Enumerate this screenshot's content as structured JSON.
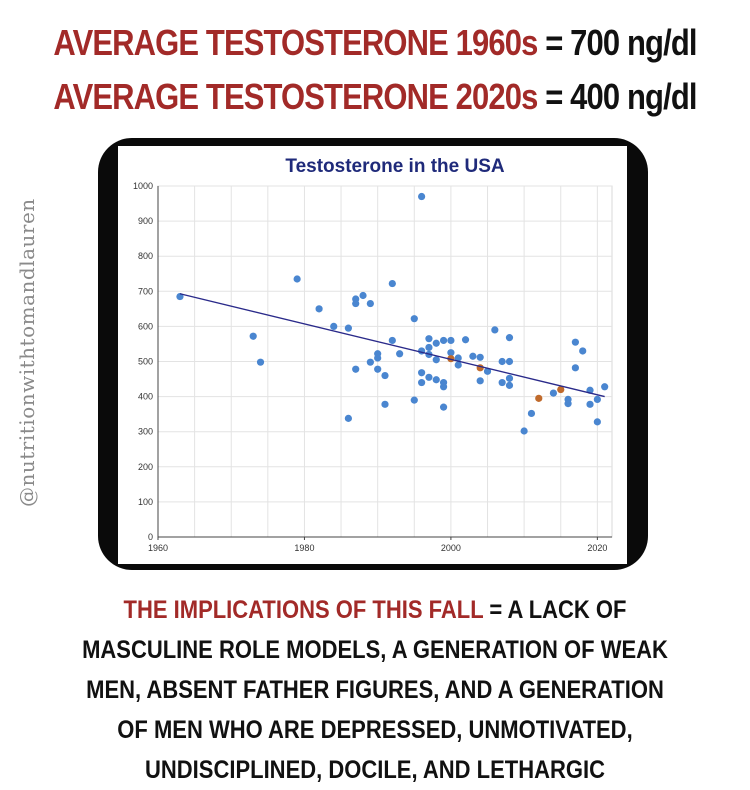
{
  "headlines": [
    {
      "label": "AVERAGE TESTOSTERONE 1960s",
      "sep": " = ",
      "value": "700 ng/dl"
    },
    {
      "label": "AVERAGE TESTOSTERONE 2020s",
      "sep": " = ",
      "value": "400 ng/dl"
    }
  ],
  "watermark": "@nutritionwithtomandlauren",
  "bottom": {
    "label": "THE IMPLICATIONS OF THIS FALL",
    "sep": " = ",
    "text": "A LACK OF MASCULINE ROLE MODELS, A GENERATION OF WEAK MEN, ABSENT FATHER FIGURES, AND A GENERATION OF MEN WHO ARE DEPRESSED, UNMOTIVATED, UNDISCIPLINED, DOCILE, AND LETHARGIC"
  },
  "colors": {
    "accent_red": "#a22a28",
    "point_blue": "#4a86d0",
    "point_orange": "#c06a2c",
    "trend_line": "#2a2a8a",
    "title_blue": "#1f2a7a"
  },
  "chart_data": {
    "type": "scatter",
    "title": "Testosterone in the USA",
    "xlabel": "",
    "ylabel": "",
    "xlim": [
      1960,
      2022
    ],
    "ylim": [
      0,
      1000
    ],
    "x_ticks": [
      1960,
      1980,
      2000,
      2020
    ],
    "y_ticks": [
      0,
      100,
      200,
      300,
      400,
      500,
      600,
      700,
      800,
      900,
      1000
    ],
    "grid": true,
    "series": [
      {
        "values": [
          {
            "x": 1963,
            "y": 685
          },
          {
            "x": 1973,
            "y": 572
          },
          {
            "x": 1974,
            "y": 498
          },
          {
            "x": 1979,
            "y": 735
          },
          {
            "x": 1982,
            "y": 650
          },
          {
            "x": 1984,
            "y": 600
          },
          {
            "x": 1986,
            "y": 595
          },
          {
            "x": 1986,
            "y": 338
          },
          {
            "x": 1987,
            "y": 665
          },
          {
            "x": 1987,
            "y": 678
          },
          {
            "x": 1987,
            "y": 478
          },
          {
            "x": 1988,
            "y": 688
          },
          {
            "x": 1989,
            "y": 665
          },
          {
            "x": 1989,
            "y": 498
          },
          {
            "x": 1990,
            "y": 522
          },
          {
            "x": 1990,
            "y": 510
          },
          {
            "x": 1990,
            "y": 478
          },
          {
            "x": 1991,
            "y": 378
          },
          {
            "x": 1991,
            "y": 460
          },
          {
            "x": 1992,
            "y": 722
          },
          {
            "x": 1992,
            "y": 560
          },
          {
            "x": 1993,
            "y": 522
          },
          {
            "x": 1995,
            "y": 622
          },
          {
            "x": 1995,
            "y": 390
          },
          {
            "x": 1996,
            "y": 970
          },
          {
            "x": 1996,
            "y": 530
          },
          {
            "x": 1996,
            "y": 468
          },
          {
            "x": 1996,
            "y": 440
          },
          {
            "x": 1997,
            "y": 565
          },
          {
            "x": 1997,
            "y": 540
          },
          {
            "x": 1997,
            "y": 520
          },
          {
            "x": 1997,
            "y": 455
          },
          {
            "x": 1998,
            "y": 552
          },
          {
            "x": 1998,
            "y": 505
          },
          {
            "x": 1998,
            "y": 448
          },
          {
            "x": 1999,
            "y": 440
          },
          {
            "x": 1999,
            "y": 428
          },
          {
            "x": 1999,
            "y": 370
          },
          {
            "x": 1999,
            "y": 560
          },
          {
            "x": 2000,
            "y": 560
          },
          {
            "x": 2000,
            "y": 525
          },
          {
            "x": 2001,
            "y": 490
          },
          {
            "x": 2001,
            "y": 510
          },
          {
            "x": 2002,
            "y": 562
          },
          {
            "x": 2003,
            "y": 515
          },
          {
            "x": 2004,
            "y": 445
          },
          {
            "x": 2004,
            "y": 512
          },
          {
            "x": 2005,
            "y": 472
          },
          {
            "x": 2006,
            "y": 590
          },
          {
            "x": 2007,
            "y": 500
          },
          {
            "x": 2007,
            "y": 440
          },
          {
            "x": 2008,
            "y": 568
          },
          {
            "x": 2008,
            "y": 500
          },
          {
            "x": 2008,
            "y": 452
          },
          {
            "x": 2008,
            "y": 432
          },
          {
            "x": 2010,
            "y": 302
          },
          {
            "x": 2011,
            "y": 352
          },
          {
            "x": 2014,
            "y": 410
          },
          {
            "x": 2016,
            "y": 380
          },
          {
            "x": 2016,
            "y": 392
          },
          {
            "x": 2017,
            "y": 555
          },
          {
            "x": 2017,
            "y": 482
          },
          {
            "x": 2018,
            "y": 530
          },
          {
            "x": 2019,
            "y": 418
          },
          {
            "x": 2019,
            "y": 378
          },
          {
            "x": 2020,
            "y": 392
          },
          {
            "x": 2020,
            "y": 328
          },
          {
            "x": 2021,
            "y": 428
          }
        ]
      },
      {
        "values": [
          {
            "x": 2000,
            "y": 508
          },
          {
            "x": 2004,
            "y": 482
          },
          {
            "x": 2012,
            "y": 395
          },
          {
            "x": 2015,
            "y": 420
          }
        ]
      }
    ],
    "trend_line": [
      {
        "x": 1963,
        "y": 693
      },
      {
        "x": 2021,
        "y": 400
      }
    ]
  }
}
